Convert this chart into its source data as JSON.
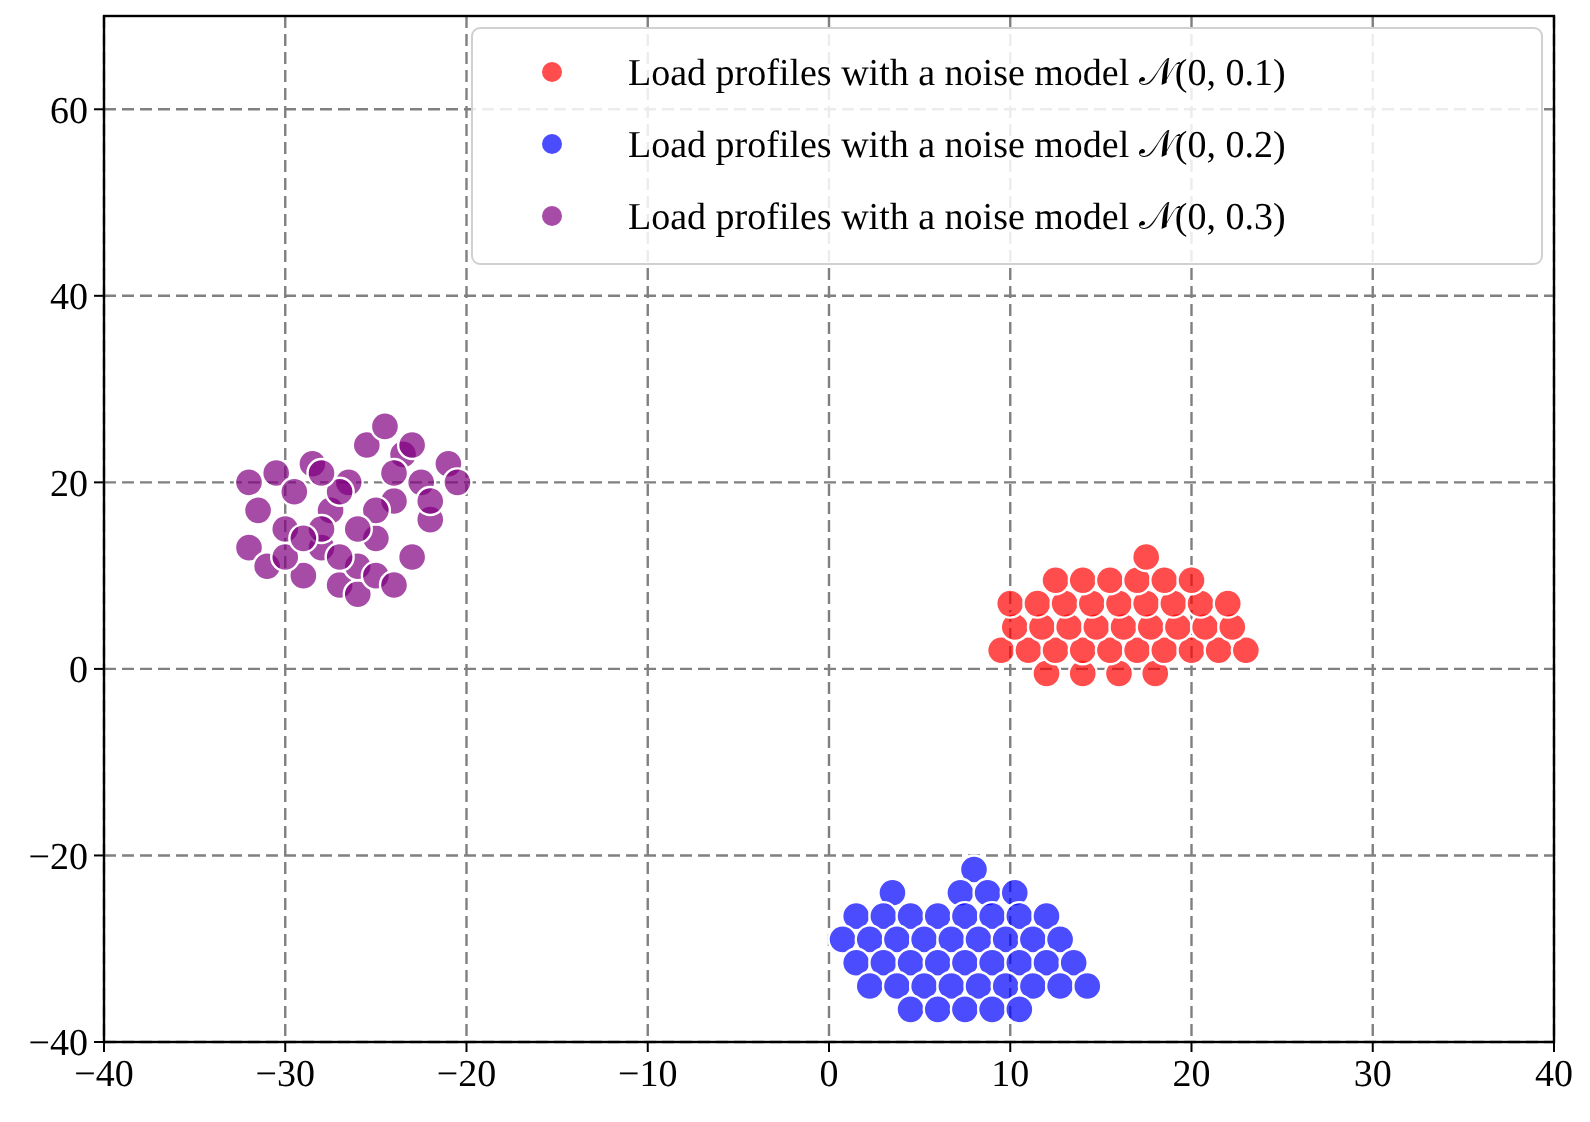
{
  "chart_data": {
    "type": "scatter",
    "xlim": [
      -40,
      40
    ],
    "ylim": [
      -40,
      70
    ],
    "xticks": [
      -40,
      -30,
      -20,
      -10,
      0,
      10,
      20,
      30,
      40
    ],
    "yticks": [
      -40,
      -20,
      0,
      20,
      40,
      60
    ],
    "grid": true,
    "legend": "top right",
    "marker": "circle",
    "series": [
      {
        "name": "Load profiles with a noise model 𝒩(0, 0.1)",
        "color": "#ff0000",
        "x": [
          12,
          14,
          16,
          18,
          9.5,
          11,
          12.5,
          14,
          15.5,
          17,
          18.5,
          20,
          21.5,
          23,
          10.25,
          11.75,
          13.25,
          14.75,
          16.25,
          17.75,
          19.25,
          20.75,
          22.25,
          10,
          11.5,
          13,
          14.5,
          16,
          17.5,
          19,
          20.5,
          22,
          12.5,
          14,
          15.5,
          17,
          18.5,
          20,
          17.5
        ],
        "values": [
          -0.5,
          -0.5,
          -0.5,
          -0.5,
          2,
          2,
          2,
          2,
          2,
          2,
          2,
          2,
          2,
          2,
          4.5,
          4.5,
          4.5,
          4.5,
          4.5,
          4.5,
          4.5,
          4.5,
          4.5,
          7,
          7,
          7,
          7,
          7,
          7,
          7,
          7,
          7,
          9.5,
          9.5,
          9.5,
          9.5,
          9.5,
          9.5,
          12
        ]
      },
      {
        "name": "Load profiles with a noise model 𝒩(0, 0.2)",
        "color": "#0000ff",
        "x": [
          8,
          3.5,
          7.25,
          8.75,
          10.25,
          1.5,
          3,
          4.5,
          6,
          7.5,
          9,
          10.5,
          12,
          0.75,
          2.25,
          3.75,
          5.25,
          6.75,
          8.25,
          9.75,
          11.25,
          12.75,
          1.5,
          3,
          4.5,
          6,
          7.5,
          9,
          10.5,
          12,
          13.5,
          2.25,
          3.75,
          5.25,
          6.75,
          8.25,
          9.75,
          11.25,
          12.75,
          14.25,
          4.5,
          6,
          7.5,
          9,
          10.5
        ],
        "values": [
          -21.5,
          -24,
          -24,
          -24,
          -24,
          -26.5,
          -26.5,
          -26.5,
          -26.5,
          -26.5,
          -26.5,
          -26.5,
          -26.5,
          -29,
          -29,
          -29,
          -29,
          -29,
          -29,
          -29,
          -29,
          -29,
          -31.5,
          -31.5,
          -31.5,
          -31.5,
          -31.5,
          -31.5,
          -31.5,
          -31.5,
          -31.5,
          -34,
          -34,
          -34,
          -34,
          -34,
          -34,
          -34,
          -34,
          -34,
          -36.5,
          -36.5,
          -36.5,
          -36.5,
          -36.5
        ]
      },
      {
        "name": "Load profiles with a noise model 𝒩(0, 0.3)",
        "color": "#800080",
        "x": [
          -32,
          -31.5,
          -31,
          -30.5,
          -30,
          -29.5,
          -29,
          -28.5,
          -28,
          -27.5,
          -27,
          -26.5,
          -26,
          -25.5,
          -25,
          -24.5,
          -24,
          -23.5,
          -23,
          -22.5,
          -22,
          -21,
          -20.5,
          -30,
          -28,
          -26,
          -24,
          -22,
          -29,
          -27,
          -25,
          -23,
          -32,
          -27,
          -25,
          -26,
          -24,
          -28
        ],
        "values": [
          13,
          17,
          11,
          21,
          15,
          19,
          10,
          22,
          13,
          17,
          9,
          20,
          8,
          24,
          14,
          26,
          18,
          23,
          12,
          20,
          16,
          22,
          20,
          12,
          15,
          11,
          21,
          18,
          14,
          19,
          10,
          24,
          20,
          12,
          17,
          15,
          9,
          21
        ]
      }
    ]
  }
}
